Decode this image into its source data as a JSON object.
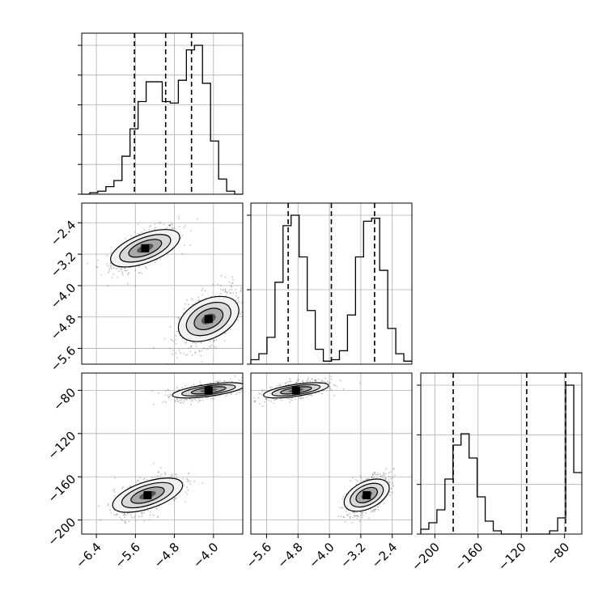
{
  "chart_data": {
    "type": "corner",
    "title": "",
    "parameters": [
      "",
      "",
      ""
    ],
    "grid": true,
    "colors": {
      "line": "#000000",
      "grid": "#b0b0b0",
      "scatter": "#555555",
      "frame": "#000000"
    },
    "histograms": [
      {
        "name": "",
        "xlim": [
          -6.7,
          -3.4
        ],
        "bin_width": 0.165,
        "bin_start": -6.7,
        "counts": [
          0,
          0.01,
          0.02,
          0.05,
          0.09,
          0.25,
          0.43,
          0.61,
          0.74,
          0.74,
          0.61,
          0.6,
          0.75,
          0.95,
          0.98,
          0.73,
          0.35,
          0.1,
          0.02,
          0
        ],
        "quantiles": [
          -5.62,
          -4.98,
          -4.45
        ],
        "ytick_count": 6
      },
      {
        "name": "",
        "xlim": [
          -6.0,
          -1.9
        ],
        "bin_width": 0.205,
        "bin_start": -6.0,
        "counts": [
          0.03,
          0.07,
          0.18,
          0.55,
          0.93,
          1.0,
          0.72,
          0.36,
          0.1,
          0.02,
          0.03,
          0.09,
          0.33,
          0.72,
          0.96,
          0.98,
          0.63,
          0.24,
          0.07,
          0.02
        ],
        "quantiles": [
          -5.05,
          -3.95,
          -2.85
        ],
        "ytick_count": 3
      },
      {
        "name": "",
        "xlim": [
          -213,
          -64
        ],
        "bin_width": 7.45,
        "bin_start": -213,
        "counts": [
          0.03,
          0.07,
          0.15,
          0.34,
          0.55,
          0.62,
          0.47,
          0.23,
          0.08,
          0.02,
          0,
          0,
          0,
          0,
          0,
          0,
          0.02,
          0.1,
          0.92,
          0.38
        ],
        "quantiles": [
          -183,
          -115,
          -79
        ],
        "ytick_count": 4
      }
    ],
    "scatter_panels": [
      {
        "x": 0,
        "y": 1,
        "modes": [
          {
            "center": [
              -5.4,
              -3.05
            ],
            "sd": [
              0.34,
              0.28
            ],
            "corr": 0.65
          },
          {
            "center": [
              -4.1,
              -4.85
            ],
            "sd": [
              0.3,
              0.38
            ],
            "corr": 0.55
          }
        ]
      },
      {
        "x": 0,
        "y": 2,
        "modes": [
          {
            "center": [
              -4.1,
              -80
            ],
            "sd": [
              0.34,
              4.2
            ],
            "corr": 0.55
          },
          {
            "center": [
              -5.35,
              -177
            ],
            "sd": [
              0.34,
              9.5
            ],
            "corr": 0.6
          }
        ]
      },
      {
        "x": 1,
        "y": 2,
        "modes": [
          {
            "center": [
              -4.85,
              -80
            ],
            "sd": [
              0.38,
              4.2
            ],
            "corr": 0.55
          },
          {
            "center": [
              -3.05,
              -177
            ],
            "sd": [
              0.28,
              9.5
            ],
            "corr": 0.6
          }
        ]
      }
    ],
    "x_tick_labels": [
      [
        "−6.4",
        "−5.6",
        "−4.8",
        "−4.0"
      ],
      [
        "−5.6",
        "−4.8",
        "−4.0",
        "−3.2",
        "−2.4"
      ],
      [
        "−200",
        "−160",
        "−120",
        "−80"
      ]
    ],
    "x_tick_values": [
      [
        -6.4,
        -5.6,
        -4.8,
        -4.0
      ],
      [
        -5.6,
        -4.8,
        -4.0,
        -3.2,
        -2.4
      ],
      [
        -200,
        -160,
        -120,
        -80
      ]
    ],
    "y_tick_labels": {
      "row1": [
        "−2.4",
        "−3.2",
        "−4.0",
        "−4.8",
        "−5.6"
      ],
      "row2": [
        "−80",
        "−120",
        "−160",
        "−200"
      ]
    },
    "y_tick_values": {
      "row1": [
        -2.4,
        -3.2,
        -4.0,
        -4.8,
        -5.6
      ],
      "row2": [
        -80,
        -120,
        -160,
        -200
      ]
    }
  }
}
